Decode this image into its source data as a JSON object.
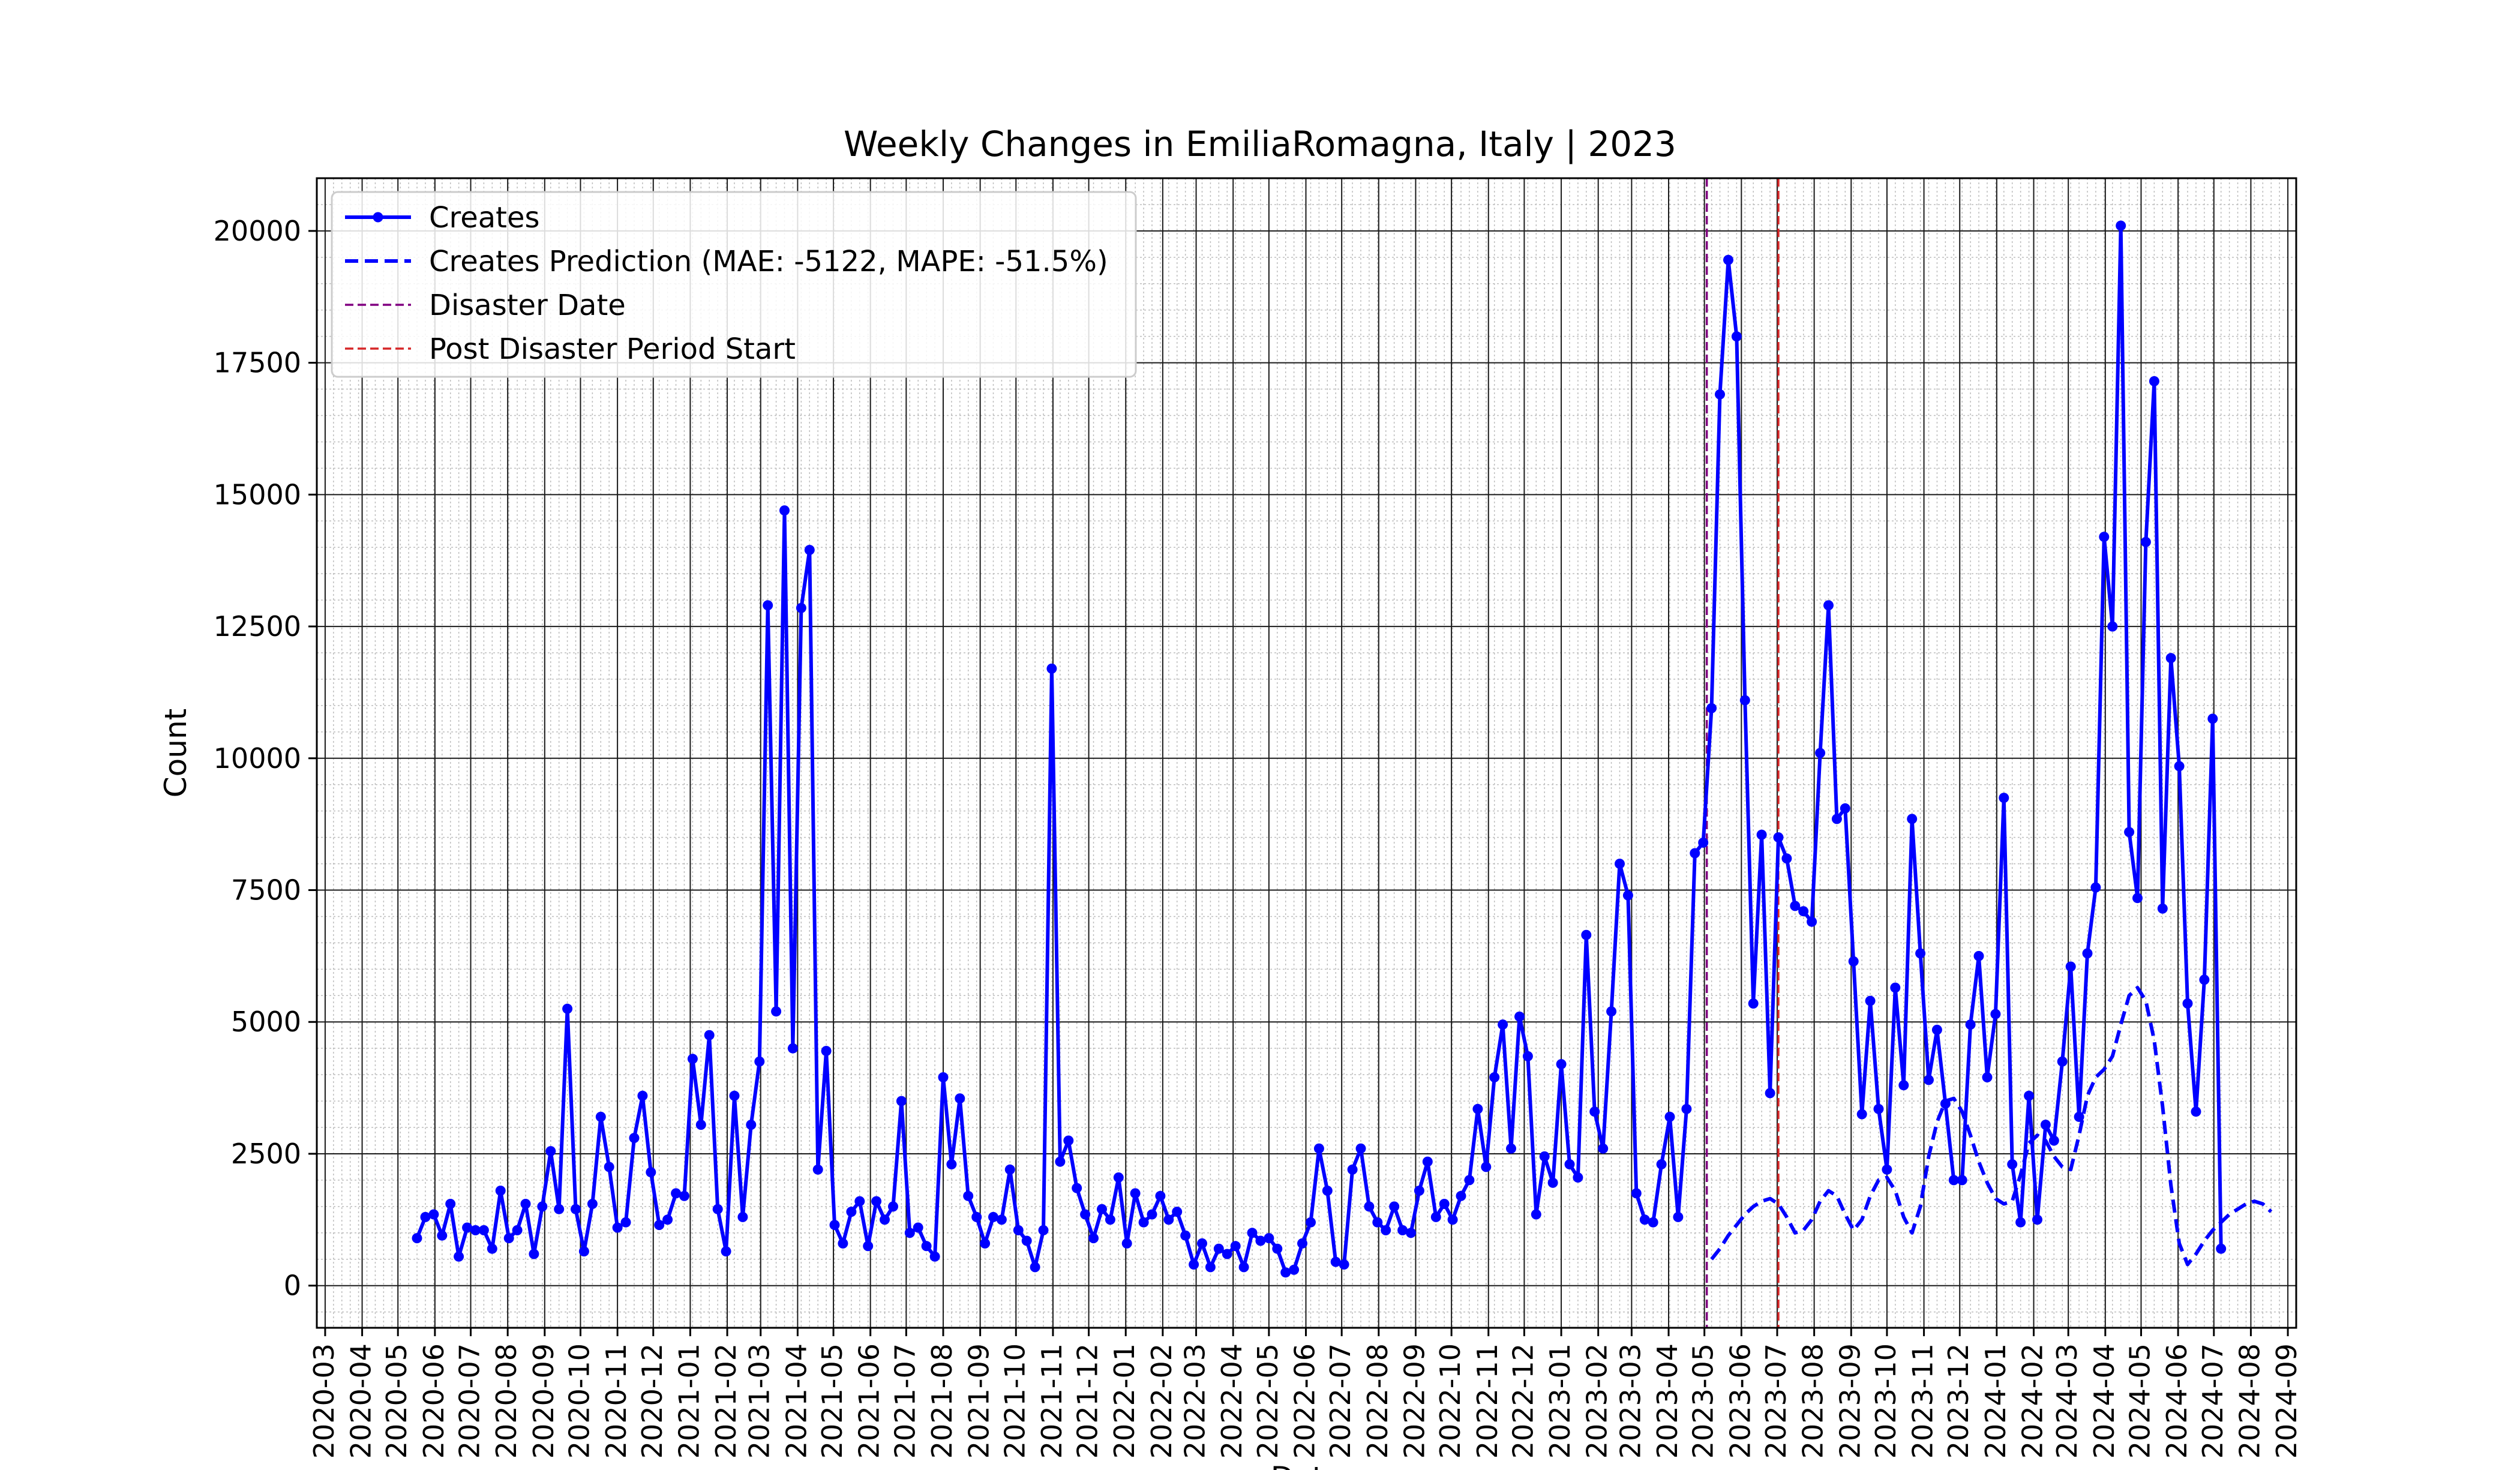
{
  "chart_data": {
    "type": "line",
    "title": "Weekly Changes in EmiliaRomagna, Italy | 2023",
    "xlabel": "Date",
    "ylabel": "Count",
    "ylim": [
      -800,
      21000
    ],
    "xlim": [
      "2020-02-23",
      "2024-09-08"
    ],
    "yticks": [
      0,
      2500,
      5000,
      7500,
      10000,
      12500,
      15000,
      17500,
      20000
    ],
    "xticks": [
      "2020-03",
      "2020-04",
      "2020-05",
      "2020-06",
      "2020-07",
      "2020-08",
      "2020-09",
      "2020-10",
      "2020-11",
      "2020-12",
      "2021-01",
      "2021-02",
      "2021-03",
      "2021-04",
      "2021-05",
      "2021-06",
      "2021-07",
      "2021-08",
      "2021-09",
      "2021-10",
      "2021-11",
      "2021-12",
      "2022-01",
      "2022-02",
      "2022-03",
      "2022-04",
      "2022-05",
      "2022-06",
      "2022-07",
      "2022-08",
      "2022-09",
      "2022-10",
      "2022-11",
      "2022-12",
      "2023-01",
      "2023-02",
      "2023-03",
      "2023-04",
      "2023-05",
      "2023-06",
      "2023-07",
      "2023-08",
      "2023-09",
      "2023-10",
      "2023-11",
      "2023-12",
      "2024-01",
      "2024-02",
      "2024-03",
      "2024-04",
      "2024-05",
      "2024-06",
      "2024-07",
      "2024-08",
      "2024-09"
    ],
    "grid": true,
    "legend_position": "top-left",
    "series": [
      {
        "name": "Creates",
        "color": "#0000ff",
        "style": "solid-with-markers",
        "start_date": "2020-05-17",
        "interval_days": 7,
        "values": [
          900,
          1300,
          1350,
          950,
          1550,
          550,
          1100,
          1050,
          1050,
          700,
          1800,
          900,
          1050,
          1550,
          600,
          1500,
          2550,
          1450,
          5250,
          1450,
          650,
          1550,
          3200,
          2250,
          1100,
          1200,
          2800,
          3600,
          2150,
          1150,
          1250,
          1750,
          1700,
          4300,
          3050,
          4750,
          1450,
          650,
          3600,
          1300,
          3050,
          4250,
          12900,
          5200,
          14700,
          4500,
          12850,
          13950,
          2200,
          4450,
          1150,
          800,
          1400,
          1600,
          750,
          1600,
          1250,
          1500,
          3500,
          1000,
          1100,
          750,
          550,
          3950,
          2300,
          3550,
          1700,
          1300,
          800,
          1300,
          1250,
          2200,
          1050,
          850,
          350,
          1050,
          11700,
          2350,
          2750,
          1850,
          1350,
          900,
          1450,
          1250,
          2050,
          800,
          1750,
          1200,
          1350,
          1700,
          1250,
          1400,
          950,
          400,
          800,
          350,
          700,
          600,
          750,
          350,
          1000,
          850,
          900,
          700,
          250,
          300,
          800,
          1200,
          2600,
          1800,
          450,
          400,
          2200,
          2600,
          1500,
          1200,
          1050,
          1500,
          1050,
          1000,
          1800,
          2350,
          1300,
          1550,
          1250,
          1700,
          2000,
          3350,
          2250,
          3950,
          4950,
          2600,
          5100,
          4350,
          1350,
          2450,
          1950,
          4200,
          2300,
          2050,
          6650,
          3300,
          2600,
          5200,
          8000,
          7400,
          1750,
          1250,
          1200,
          2300,
          3200,
          1300,
          3350,
          8200,
          8400,
          10950,
          16900,
          19450,
          18000,
          11100,
          5350,
          8550,
          3650,
          8500,
          8100,
          7200,
          7100,
          6900,
          10100,
          12900,
          8850,
          9050,
          6150,
          3250,
          5400,
          3350,
          2200,
          5650,
          3800,
          8850,
          6300,
          3900,
          4850,
          3450,
          2000,
          2000,
          4950,
          6250,
          3950,
          5150,
          9250,
          2300,
          1200,
          3600,
          1250,
          3050,
          2750,
          4250,
          6050,
          3200,
          6300,
          7550,
          14200,
          12500,
          20100,
          8600,
          7350,
          14100,
          17150,
          7150,
          11900,
          9850,
          5350,
          3300,
          5800,
          10750,
          700
        ]
      },
      {
        "name": "Creates Prediction (MAE: -5122, MAPE: -51.5%)",
        "color": "#0000ff",
        "style": "dashed",
        "start_date": "2023-05-07",
        "interval_days": 7,
        "values": [
          500,
          700,
          950,
          1150,
          1350,
          1500,
          1600,
          1650,
          1550,
          1300,
          1000,
          1050,
          1250,
          1600,
          1800,
          1700,
          1350,
          1050,
          1250,
          1700,
          2000,
          2050,
          1800,
          1300,
          1000,
          1500,
          2450,
          3100,
          3500,
          3550,
          3300,
          2850,
          2350,
          1950,
          1650,
          1550,
          1600,
          2100,
          2700,
          2850,
          2750,
          2450,
          2250,
          2200,
          2850,
          3600,
          3950,
          4100,
          4350,
          4950,
          5500,
          5650,
          5400,
          4650,
          3400,
          1900,
          800,
          400,
          600,
          850,
          1050,
          1200,
          1350,
          1450,
          1550,
          1600,
          1550,
          1400
        ]
      }
    ],
    "vlines": [
      {
        "name": "Disaster Date",
        "date": "2023-05-03",
        "color": "#800080",
        "style": "dashed"
      },
      {
        "name": "Post Disaster Period Start",
        "date": "2023-07-02",
        "color": "#d62728",
        "style": "dashed"
      }
    ]
  }
}
